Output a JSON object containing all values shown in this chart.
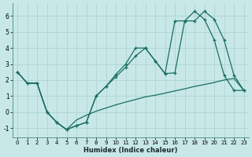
{
  "xlabel": "Humidex (Indice chaleur)",
  "bg_color": "#c8e8e8",
  "line_color": "#1a6e60",
  "grid_color": "#a8d0cc",
  "xlim": [
    -0.5,
    23.5
  ],
  "ylim": [
    -1.6,
    6.8
  ],
  "xtick_vals": [
    0,
    1,
    2,
    3,
    4,
    5,
    6,
    7,
    8,
    9,
    10,
    11,
    12,
    13,
    14,
    15,
    16,
    17,
    18,
    19,
    20,
    21,
    22,
    23
  ],
  "ytick_vals": [
    -1,
    0,
    1,
    2,
    3,
    4,
    5,
    6
  ],
  "line1": [
    2.5,
    1.8,
    1.8,
    0.0,
    -0.65,
    -1.1,
    -0.85,
    -0.65,
    1.0,
    1.6,
    2.35,
    3.0,
    4.0,
    4.0,
    3.2,
    2.4,
    2.45,
    5.7,
    5.7,
    6.3,
    5.8,
    4.5,
    2.3,
    1.35
  ],
  "line2": [
    2.5,
    1.8,
    1.8,
    0.0,
    -0.65,
    -1.1,
    -0.85,
    -0.65,
    1.0,
    1.6,
    2.2,
    2.8,
    3.5,
    4.0,
    3.2,
    2.4,
    5.7,
    5.7,
    6.3,
    5.8,
    4.5,
    2.3,
    1.35,
    1.35
  ],
  "line3": [
    2.5,
    1.8,
    1.8,
    0.0,
    -0.65,
    -1.1,
    -0.5,
    -0.2,
    0.05,
    0.25,
    0.45,
    0.62,
    0.78,
    0.95,
    1.05,
    1.18,
    1.32,
    1.45,
    1.6,
    1.72,
    1.85,
    2.0,
    2.1,
    1.35
  ]
}
